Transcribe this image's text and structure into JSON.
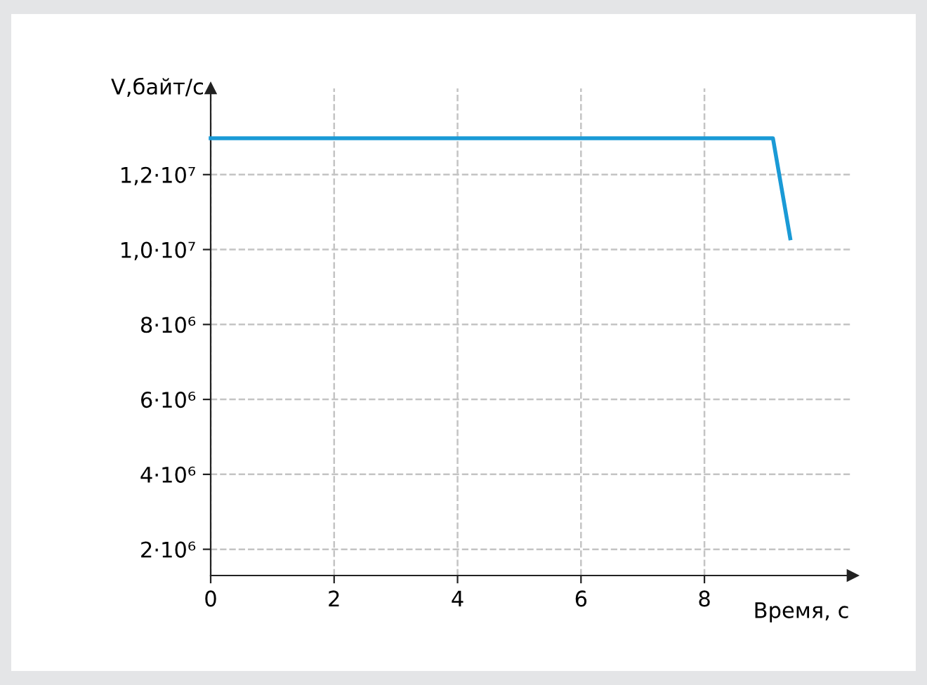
{
  "chart_data": {
    "type": "line",
    "xlabel": "Время, с",
    "ylabel": "V,байт/с",
    "x": [
      0,
      9.11,
      9.39
    ],
    "series": [
      {
        "color": "#1a9ad6",
        "values": [
          12970000,
          12970000,
          10300000
        ]
      }
    ],
    "xlim": [
      0,
      10.4
    ],
    "ylim": [
      1300000,
      14300000
    ],
    "xticks": [
      0,
      2,
      4,
      6,
      8
    ],
    "yticks": [
      {
        "value": 2000000,
        "label": "2·10⁶"
      },
      {
        "value": 4000000,
        "label": "4·10⁶"
      },
      {
        "value": 6000000,
        "label": "6·10⁶"
      },
      {
        "value": 8000000,
        "label": "8·10⁶"
      },
      {
        "value": 10000000,
        "label": "1,0·10⁷"
      },
      {
        "value": 12000000,
        "label": "1,2·10⁷"
      }
    ],
    "grid": true,
    "marker": "none",
    "line_style": "solid"
  }
}
